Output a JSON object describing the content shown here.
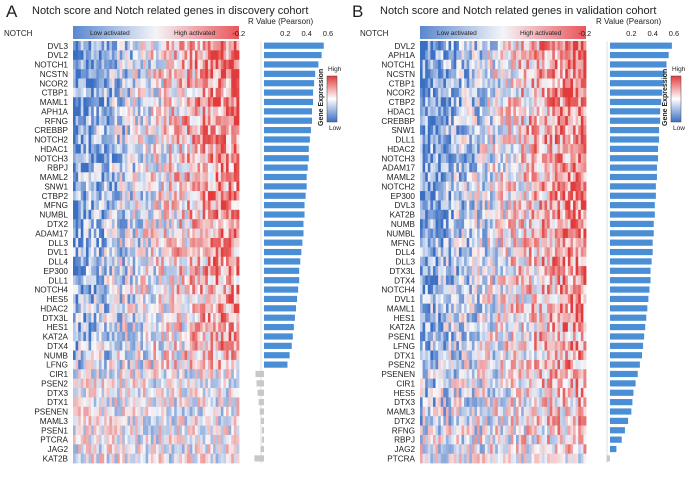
{
  "panels": [
    {
      "letter": "A",
      "title": "Notch score and Notch related genes in discovery cohort",
      "header_label": "NOTCH",
      "low_label": "Low activated",
      "high_label": "High activated"
    },
    {
      "letter": "B",
      "title": "Notch score and Notch related genes in validation cohort",
      "header_label": "NOTCH",
      "low_label": "Low activated",
      "high_label": "High activated"
    }
  ],
  "legend": {
    "title": "Gene Expression",
    "high": "High",
    "low": "Low"
  },
  "colors": {
    "low": "#3b6fc4",
    "mid": "#ffffff",
    "high": "#e23b3b",
    "bar_pos": "#4a8fd6",
    "bar_neg": "#c8c8c8"
  },
  "chart_data": [
    {
      "type": "heatmap+bar",
      "panel": "A",
      "xlabel": "R Value (Pearson)",
      "xlim": [
        -0.2,
        0.6
      ],
      "ticks": [
        -0.2,
        0.2,
        0.4,
        0.6
      ],
      "tick_labels": [
        "-0.2",
        "0.2",
        "0.4",
        "0.6"
      ],
      "genes": [
        "DVL3",
        "DVL2",
        "NOTCH1",
        "NCSTN",
        "NCOR2",
        "CTBP1",
        "MAML1",
        "APH1A",
        "RFNG",
        "CREBBP",
        "NOTCH2",
        "HDAC1",
        "NOTCH3",
        "RBPJ",
        "MAML2",
        "SNW1",
        "CTBP2",
        "MFNG",
        "NUMBL",
        "DTX2",
        "ADAM17",
        "DLL3",
        "DVL1",
        "DLL4",
        "EP300",
        "DLL1",
        "NOTCH4",
        "HES5",
        "HDAC2",
        "DTX3L",
        "HES1",
        "KAT2A",
        "DTX4",
        "NUMB",
        "LFNG",
        "CIR1",
        "PSEN2",
        "DTX3",
        "DTX1",
        "PSENEN",
        "MAML3",
        "PSEN1",
        "PTCRA",
        "JAG2",
        "KAT2B"
      ],
      "values": [
        0.56,
        0.54,
        0.51,
        0.48,
        0.47,
        0.46,
        0.46,
        0.45,
        0.45,
        0.44,
        0.43,
        0.42,
        0.42,
        0.41,
        0.4,
        0.4,
        0.39,
        0.38,
        0.38,
        0.37,
        0.37,
        0.36,
        0.35,
        0.34,
        0.33,
        0.33,
        0.32,
        0.31,
        0.3,
        0.29,
        0.28,
        0.27,
        0.26,
        0.24,
        0.22,
        -0.08,
        -0.07,
        -0.06,
        -0.05,
        -0.04,
        -0.03,
        -0.02,
        -0.02,
        -0.03,
        -0.09
      ]
    },
    {
      "type": "heatmap+bar",
      "panel": "B",
      "xlabel": "R Value (Pearson)",
      "xlim": [
        -0.2,
        0.6
      ],
      "ticks": [
        -0.2,
        0.2,
        0.4,
        0.6
      ],
      "tick_labels": [
        "-0.2",
        "0.2",
        "0.4",
        "0.6"
      ],
      "genes": [
        "DVL2",
        "APH1A",
        "NOTCH1",
        "NCSTN",
        "CTBP1",
        "NCOR2",
        "CTBP2",
        "HDAC1",
        "CREBBP",
        "SNW1",
        "DLL1",
        "HDAC2",
        "NOTCH3",
        "ADAM17",
        "MAML2",
        "NOTCH2",
        "EP300",
        "DVL3",
        "KAT2B",
        "NUMB",
        "NUMBL",
        "MFNG",
        "DLL4",
        "DLL3",
        "DTX3L",
        "DTX4",
        "NOTCH4",
        "DVL1",
        "MAML1",
        "HES1",
        "KAT2A",
        "PSEN1",
        "LFNG",
        "DTX1",
        "PSEN2",
        "PSENEN",
        "CIR1",
        "HES5",
        "DTX3",
        "MAML3",
        "DTX2",
        "RFNG",
        "RBPJ",
        "JAG2",
        "PTCRA"
      ],
      "values": [
        0.58,
        0.55,
        0.53,
        0.51,
        0.5,
        0.49,
        0.48,
        0.47,
        0.47,
        0.46,
        0.46,
        0.45,
        0.45,
        0.44,
        0.44,
        0.43,
        0.43,
        0.42,
        0.42,
        0.41,
        0.41,
        0.4,
        0.4,
        0.39,
        0.38,
        0.38,
        0.37,
        0.36,
        0.35,
        0.34,
        0.33,
        0.32,
        0.31,
        0.3,
        0.28,
        0.26,
        0.24,
        0.22,
        0.21,
        0.2,
        0.17,
        0.14,
        0.11,
        0.06,
        -0.03
      ]
    }
  ]
}
